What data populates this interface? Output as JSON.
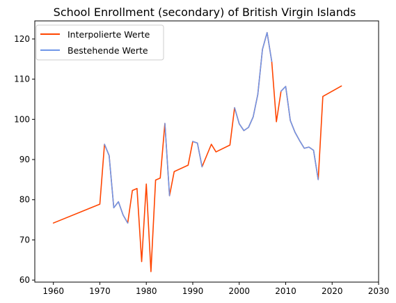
{
  "chart_data": {
    "type": "line",
    "title": "School Enrollment (secondary) of British Virgin Islands",
    "xlabel": "",
    "ylabel": "",
    "xlim": [
      1956,
      2030
    ],
    "ylim": [
      59.5,
      124.5
    ],
    "x_ticks": [
      1960,
      1970,
      1980,
      1990,
      2000,
      2010,
      2020,
      2030
    ],
    "y_ticks": [
      60,
      70,
      80,
      90,
      100,
      110,
      120
    ],
    "grid": false,
    "legend_position": "top-left",
    "series": [
      {
        "name": "Interpolierte Werte",
        "color": "#ff4500",
        "points": [
          [
            1960,
            74.2
          ],
          [
            1970,
            78.9
          ],
          [
            1971,
            93.8
          ],
          [
            1972,
            91.0
          ],
          [
            1973,
            78.0
          ],
          [
            1974,
            79.5
          ],
          [
            1975,
            76.2
          ],
          [
            1976,
            74.2
          ],
          [
            1977,
            82.3
          ],
          [
            1978,
            82.8
          ],
          [
            1979,
            64.6
          ],
          [
            1980,
            83.9
          ],
          [
            1981,
            62.1
          ],
          [
            1982,
            84.9
          ],
          [
            1983,
            85.4
          ],
          [
            1984,
            99.0
          ],
          [
            1985,
            81.0
          ],
          [
            1986,
            87.0
          ],
          [
            1989,
            88.6
          ],
          [
            1990,
            94.5
          ],
          [
            1991,
            94.1
          ],
          [
            1992,
            88.2
          ],
          [
            1994,
            93.8
          ],
          [
            1995,
            91.9
          ],
          [
            1998,
            93.6
          ],
          [
            1999,
            102.9
          ],
          [
            2000,
            98.9
          ],
          [
            2001,
            97.2
          ],
          [
            2002,
            98.0
          ],
          [
            2003,
            100.6
          ],
          [
            2004,
            106.2
          ],
          [
            2005,
            117.4
          ],
          [
            2006,
            121.6
          ],
          [
            2007,
            114.4
          ],
          [
            2008,
            99.4
          ],
          [
            2009,
            107.0
          ],
          [
            2010,
            108.2
          ],
          [
            2011,
            99.7
          ],
          [
            2012,
            96.8
          ],
          [
            2013,
            94.7
          ],
          [
            2014,
            92.8
          ],
          [
            2015,
            93.1
          ],
          [
            2016,
            92.3
          ],
          [
            2017,
            85.0
          ],
          [
            2018,
            105.7
          ],
          [
            2022,
            108.3
          ]
        ]
      },
      {
        "name": "Bestehende Werte",
        "color": "#6f96e8",
        "segments": [
          [
            [
              1971,
              93.8
            ],
            [
              1972,
              91.0
            ],
            [
              1973,
              78.0
            ],
            [
              1974,
              79.5
            ],
            [
              1975,
              76.2
            ],
            [
              1976,
              74.2
            ]
          ],
          [
            [
              1984,
              99.0
            ],
            [
              1985,
              81.0
            ]
          ],
          [
            [
              1990,
              94.5
            ],
            [
              1991,
              94.1
            ],
            [
              1992,
              88.2
            ]
          ],
          [
            [
              1999,
              102.9
            ],
            [
              2000,
              98.9
            ],
            [
              2001,
              97.2
            ],
            [
              2002,
              98.0
            ],
            [
              2003,
              100.6
            ],
            [
              2004,
              106.2
            ],
            [
              2005,
              117.4
            ],
            [
              2006,
              121.6
            ],
            [
              2007,
              114.4
            ]
          ],
          [
            [
              2009,
              107.0
            ],
            [
              2010,
              108.2
            ],
            [
              2011,
              99.7
            ],
            [
              2012,
              96.8
            ],
            [
              2013,
              94.7
            ],
            [
              2014,
              92.8
            ],
            [
              2015,
              93.1
            ],
            [
              2016,
              92.3
            ],
            [
              2017,
              85.0
            ]
          ]
        ]
      }
    ]
  }
}
